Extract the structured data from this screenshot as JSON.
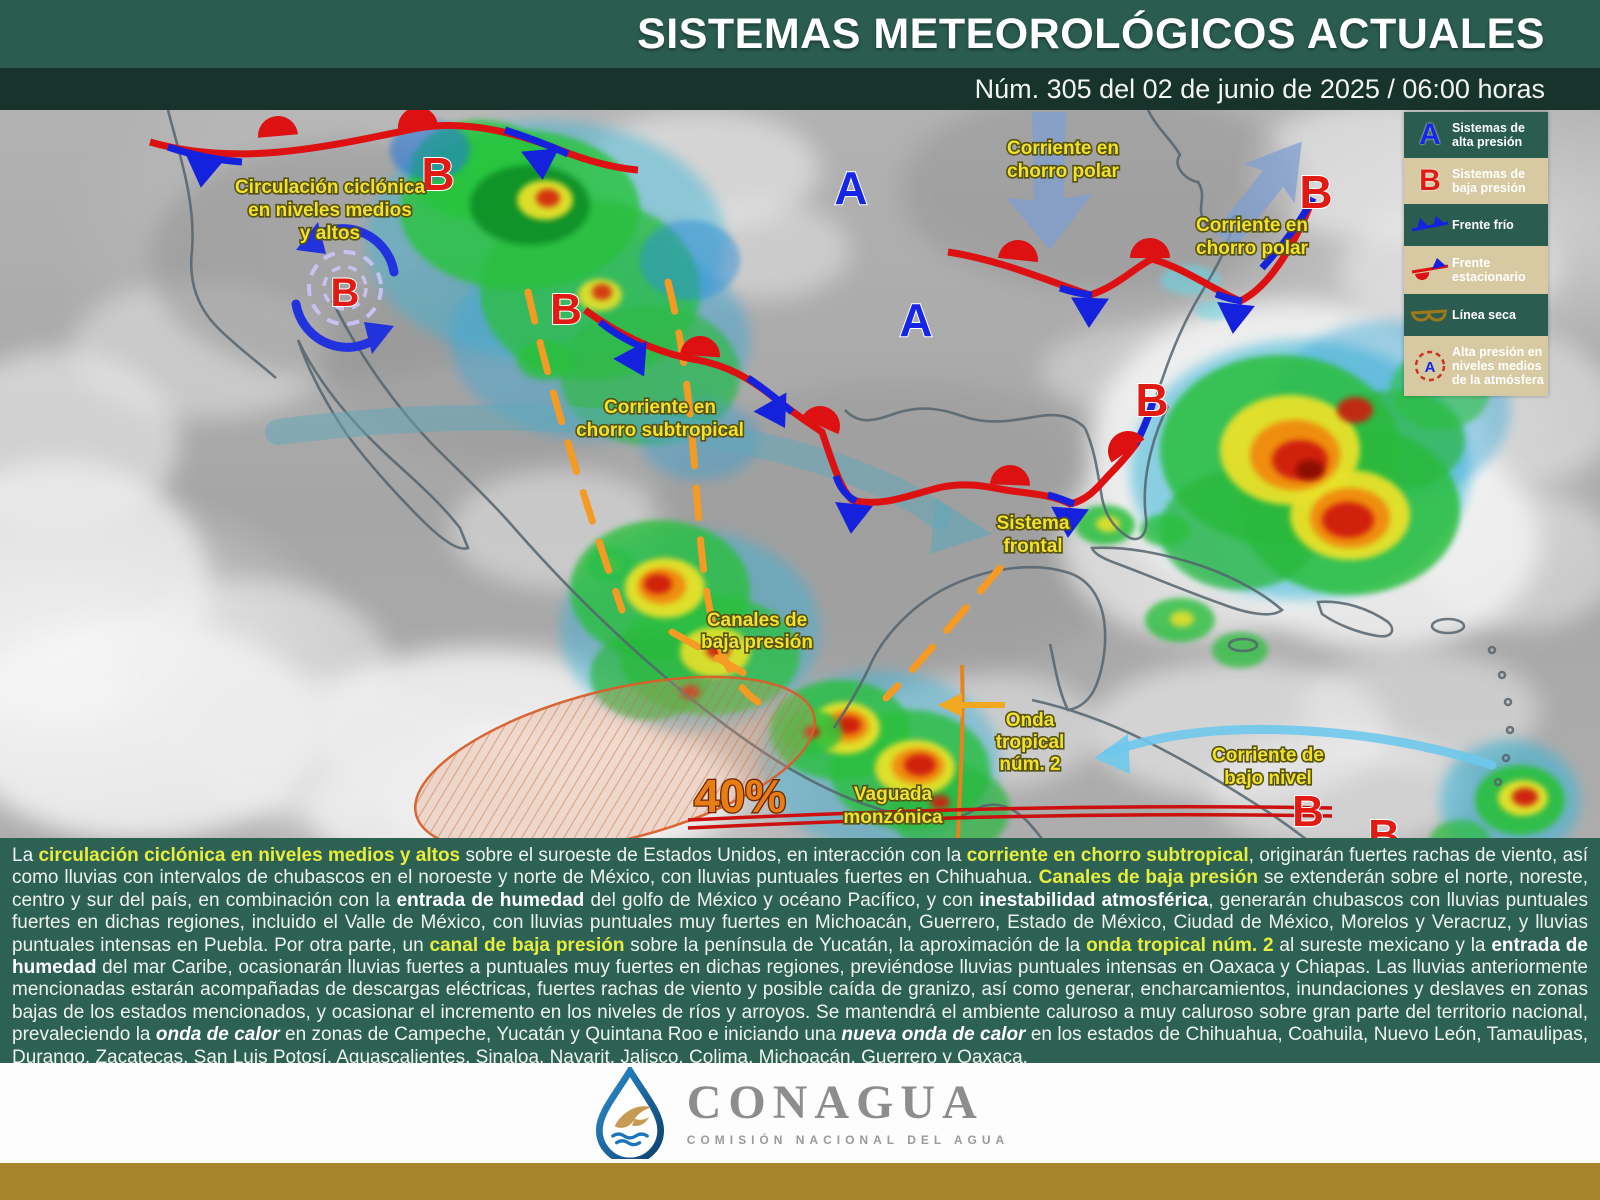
{
  "header": {
    "title": "SISTEMAS METEOROLÓGICOS ACTUALES",
    "subtitle": "Núm. 305 del 02 de junio de 2025 / 06:00 horas"
  },
  "legend": {
    "items": [
      {
        "symbol": "A",
        "label": "Sistemas de alta presión"
      },
      {
        "symbol": "B",
        "label": "Sistemas de baja presión"
      },
      {
        "symbol": "",
        "label": "Frente frío"
      },
      {
        "symbol": "",
        "label": "Frente estacionario"
      },
      {
        "symbol": "",
        "label": "Línea seca"
      },
      {
        "symbol": "A",
        "label": "Alta presión en niveles medios de la atmósfera"
      }
    ]
  },
  "map": {
    "labels": {
      "circulacion": [
        "Circulación ciclónica",
        "en niveles medios",
        "y altos"
      ],
      "chorro_polar_norte": [
        "Corriente en",
        "chorro polar"
      ],
      "chorro_polar_este": [
        "Corriente en",
        "chorro polar"
      ],
      "chorro_subtropical": [
        "Corriente en",
        "chorro subtropical"
      ],
      "sistema_frontal": [
        "Sistema",
        "frontal"
      ],
      "canales_baja_presion": [
        "Canales de",
        "baja presión"
      ],
      "onda_tropical": [
        "Onda",
        "tropical",
        "núm. 2"
      ],
      "vaguada_monzonica": [
        "Vaguada",
        "monzónica"
      ],
      "corriente_bajo_nivel": [
        "Corriente de",
        "bajo nivel"
      ],
      "probabilidad": "40%"
    },
    "symbols": {
      "high": "A",
      "low": "B"
    }
  },
  "bulletin": {
    "segments": [
      {
        "style": "n",
        "text": "La "
      },
      {
        "style": "yb",
        "text": "circulación ciclónica en niveles medios y altos"
      },
      {
        "style": "n",
        "text": " sobre el suroeste de Estados Unidos, en interacción con la "
      },
      {
        "style": "yb",
        "text": "corriente en chorro subtropical"
      },
      {
        "style": "n",
        "text": ", originarán fuertes rachas de viento, así como lluvias con intervalos de chubascos en el noroeste y norte de México, con lluvias puntuales fuertes en Chihuahua. "
      },
      {
        "style": "yb",
        "text": "Canales de baja presión"
      },
      {
        "style": "n",
        "text": " se extenderán sobre el norte, noreste, centro y sur del país, en combinación con la "
      },
      {
        "style": "wb",
        "text": "entrada de humedad"
      },
      {
        "style": "n",
        "text": " del golfo de México y océano Pacífico, y con "
      },
      {
        "style": "wb",
        "text": "inestabilidad atmosférica"
      },
      {
        "style": "n",
        "text": ", generarán chubascos con lluvias puntuales fuertes en dichas regiones, incluido el Valle de México, con lluvias puntuales muy fuertes en Michoacán, Guerrero, Estado de México, Ciudad de México, Morelos y Veracruz, y lluvias puntuales intensas en Puebla. Por otra parte, un "
      },
      {
        "style": "yb",
        "text": "canal de baja presión"
      },
      {
        "style": "n",
        "text": " sobre la península de Yucatán, la aproximación de la "
      },
      {
        "style": "yb",
        "text": "onda tropical núm. 2"
      },
      {
        "style": "n",
        "text": " al sureste mexicano y la "
      },
      {
        "style": "wb",
        "text": "entrada de humedad"
      },
      {
        "style": "n",
        "text": " del mar Caribe, ocasionarán lluvias fuertes a puntuales muy fuertes en dichas regiones, previéndose lluvias puntuales intensas en Oaxaca y Chiapas. Las lluvias anteriormente mencionadas estarán acompañadas de descargas eléctricas, fuertes rachas de viento y posible caída de granizo, así como generar, encharcamientos, inundaciones y deslaves en zonas bajas de los estados mencionados, y ocasionar el incremento en los niveles de ríos y arroyos. Se mantendrá el ambiente caluroso a muy caluroso sobre gran parte del territorio nacional, prevaleciendo la "
      },
      {
        "style": "bi",
        "text": "onda de calor"
      },
      {
        "style": "n",
        "text": " en zonas de Campeche, Yucatán y Quintana Roo e iniciando una "
      },
      {
        "style": "bi",
        "text": "nueva onda de calor"
      },
      {
        "style": "n",
        "text": " en los estados de Chihuahua, Coahuila, Nuevo León, Tamaulipas, Durango, Zacatecas, San Luis Potosí, Aguascalientes, Sinaloa, Nayarit, Jalisco, Colima, Michoacán, Guerrero y Oaxaca."
      }
    ]
  },
  "footer": {
    "logo_title": "CONAGUA",
    "logo_subtitle": "COMISIÓN NACIONAL DEL AGUA"
  },
  "colors": {
    "header_green": "#2a5c4f",
    "subheader_green": "#17332b",
    "panel_green": "#2d6154",
    "highlight_yellow": "#e7ee3e",
    "gold_bar": "#a8842c",
    "high_pressure_blue": "#1526e8",
    "low_pressure_red": "#e11b14"
  }
}
